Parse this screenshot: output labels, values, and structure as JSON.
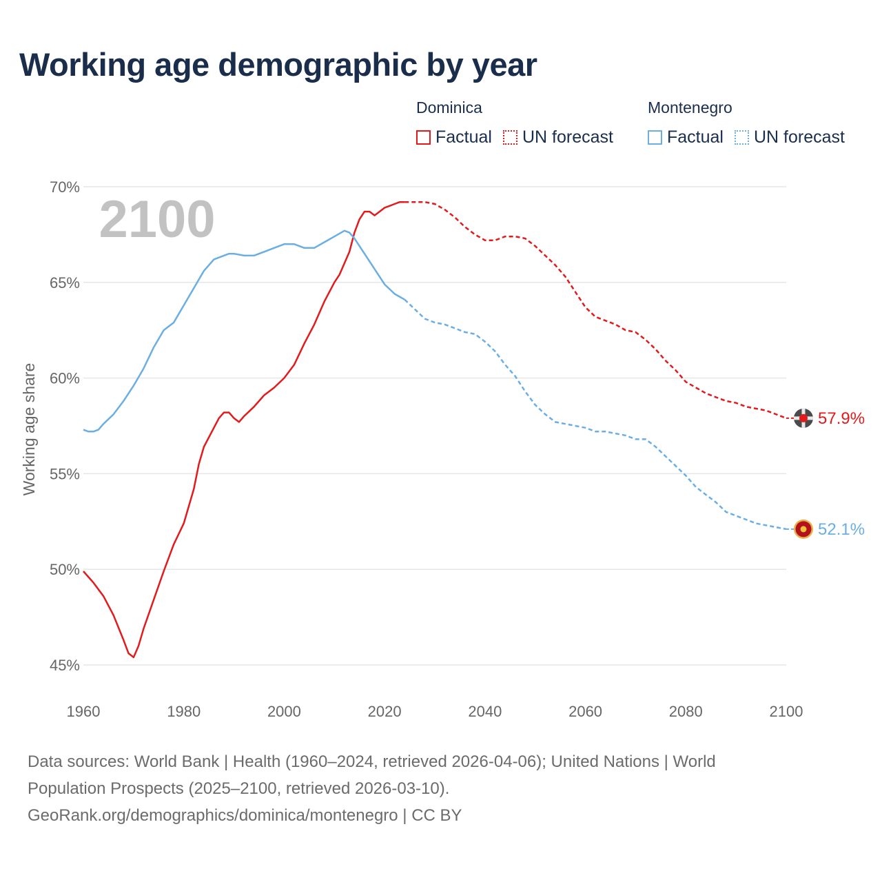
{
  "title": "Working age demographic by year",
  "legend": {
    "groups": [
      {
        "name": "Dominica",
        "color": "#e31a1c",
        "factual_label": "Factual",
        "forecast_label": "UN forecast"
      },
      {
        "name": "Montenegro",
        "color": "#6aaee3",
        "factual_label": "Factual",
        "forecast_label": "UN forecast"
      }
    ]
  },
  "source": {
    "line1": "Data sources: World Bank | Health (1960–2024, retrieved 2026-04-06); United Nations | World",
    "line2": "Population Prospects (2025–2100, retrieved 2026-03-10).",
    "line3": "GeoRank.org/demographics/dominica/montenegro | CC BY"
  },
  "chart_data": {
    "type": "line",
    "title": "Working age demographic by year",
    "ylabel": "Working age share",
    "xlabel": "",
    "xlim": [
      1960,
      2100
    ],
    "ylim": [
      45,
      70
    ],
    "x_ticks": [
      1960,
      1980,
      2000,
      2020,
      2040,
      2060,
      2080,
      2100
    ],
    "x_tick_labels": [
      "1960",
      "1980",
      "2000",
      "2020",
      "2040",
      "2060",
      "2080",
      "2100"
    ],
    "y_ticks": [
      45,
      50,
      55,
      60,
      65,
      70
    ],
    "y_tick_labels": [
      "45%",
      "50%",
      "55%",
      "60%",
      "65%",
      "70%"
    ],
    "current_year_label": "2100",
    "forecast_start": 2024,
    "series": [
      {
        "name": "Dominica",
        "color": "#e31a1c",
        "end_label": "57.9%",
        "points": [
          [
            1960,
            49.9
          ],
          [
            1962,
            49.3
          ],
          [
            1964,
            48.6
          ],
          [
            1966,
            47.6
          ],
          [
            1968,
            46.3
          ],
          [
            1969,
            45.6
          ],
          [
            1970,
            45.4
          ],
          [
            1971,
            46.0
          ],
          [
            1972,
            46.9
          ],
          [
            1974,
            48.4
          ],
          [
            1976,
            49.9
          ],
          [
            1978,
            51.3
          ],
          [
            1980,
            52.4
          ],
          [
            1982,
            54.2
          ],
          [
            1983,
            55.5
          ],
          [
            1984,
            56.4
          ],
          [
            1986,
            57.4
          ],
          [
            1987,
            57.9
          ],
          [
            1988,
            58.2
          ],
          [
            1989,
            58.2
          ],
          [
            1990,
            57.9
          ],
          [
            1991,
            57.7
          ],
          [
            1992,
            58.0
          ],
          [
            1994,
            58.5
          ],
          [
            1996,
            59.1
          ],
          [
            1998,
            59.5
          ],
          [
            2000,
            60.0
          ],
          [
            2002,
            60.7
          ],
          [
            2004,
            61.8
          ],
          [
            2006,
            62.8
          ],
          [
            2008,
            64.0
          ],
          [
            2010,
            65.0
          ],
          [
            2011,
            65.4
          ],
          [
            2013,
            66.6
          ],
          [
            2014,
            67.6
          ],
          [
            2015,
            68.3
          ],
          [
            2016,
            68.7
          ],
          [
            2017,
            68.7
          ],
          [
            2018,
            68.5
          ],
          [
            2019,
            68.7
          ],
          [
            2020,
            68.9
          ],
          [
            2021,
            69.0
          ],
          [
            2022,
            69.1
          ],
          [
            2023,
            69.2
          ],
          [
            2024,
            69.2
          ],
          [
            2026,
            69.2
          ],
          [
            2028,
            69.2
          ],
          [
            2030,
            69.1
          ],
          [
            2032,
            68.8
          ],
          [
            2034,
            68.4
          ],
          [
            2036,
            67.9
          ],
          [
            2038,
            67.5
          ],
          [
            2040,
            67.2
          ],
          [
            2042,
            67.2
          ],
          [
            2044,
            67.4
          ],
          [
            2046,
            67.4
          ],
          [
            2048,
            67.3
          ],
          [
            2050,
            66.9
          ],
          [
            2052,
            66.4
          ],
          [
            2054,
            65.9
          ],
          [
            2056,
            65.3
          ],
          [
            2058,
            64.5
          ],
          [
            2060,
            63.7
          ],
          [
            2062,
            63.2
          ],
          [
            2064,
            63.0
          ],
          [
            2066,
            62.8
          ],
          [
            2068,
            62.5
          ],
          [
            2070,
            62.4
          ],
          [
            2072,
            62.0
          ],
          [
            2074,
            61.5
          ],
          [
            2076,
            60.9
          ],
          [
            2078,
            60.4
          ],
          [
            2080,
            59.8
          ],
          [
            2082,
            59.5
          ],
          [
            2084,
            59.2
          ],
          [
            2086,
            59.0
          ],
          [
            2088,
            58.8
          ],
          [
            2090,
            58.7
          ],
          [
            2092,
            58.5
          ],
          [
            2094,
            58.4
          ],
          [
            2096,
            58.3
          ],
          [
            2098,
            58.1
          ],
          [
            2100,
            57.9
          ]
        ]
      },
      {
        "name": "Montenegro",
        "color": "#6aaee3",
        "end_label": "52.1%",
        "points": [
          [
            1960,
            57.3
          ],
          [
            1961,
            57.2
          ],
          [
            1962,
            57.2
          ],
          [
            1963,
            57.3
          ],
          [
            1964,
            57.6
          ],
          [
            1966,
            58.1
          ],
          [
            1968,
            58.8
          ],
          [
            1970,
            59.6
          ],
          [
            1972,
            60.5
          ],
          [
            1974,
            61.6
          ],
          [
            1976,
            62.5
          ],
          [
            1978,
            62.9
          ],
          [
            1980,
            63.8
          ],
          [
            1982,
            64.7
          ],
          [
            1984,
            65.6
          ],
          [
            1986,
            66.2
          ],
          [
            1988,
            66.4
          ],
          [
            1989,
            66.5
          ],
          [
            1990,
            66.5
          ],
          [
            1992,
            66.4
          ],
          [
            1994,
            66.4
          ],
          [
            1996,
            66.6
          ],
          [
            1998,
            66.8
          ],
          [
            2000,
            67.0
          ],
          [
            2002,
            67.0
          ],
          [
            2004,
            66.8
          ],
          [
            2006,
            66.8
          ],
          [
            2008,
            67.1
          ],
          [
            2010,
            67.4
          ],
          [
            2012,
            67.7
          ],
          [
            2013,
            67.6
          ],
          [
            2014,
            67.3
          ],
          [
            2016,
            66.5
          ],
          [
            2018,
            65.7
          ],
          [
            2020,
            64.9
          ],
          [
            2022,
            64.4
          ],
          [
            2024,
            64.1
          ],
          [
            2026,
            63.6
          ],
          [
            2028,
            63.1
          ],
          [
            2030,
            62.9
          ],
          [
            2032,
            62.8
          ],
          [
            2034,
            62.6
          ],
          [
            2036,
            62.4
          ],
          [
            2038,
            62.3
          ],
          [
            2040,
            61.9
          ],
          [
            2042,
            61.4
          ],
          [
            2044,
            60.7
          ],
          [
            2046,
            60.1
          ],
          [
            2048,
            59.3
          ],
          [
            2050,
            58.6
          ],
          [
            2052,
            58.1
          ],
          [
            2054,
            57.7
          ],
          [
            2056,
            57.6
          ],
          [
            2058,
            57.5
          ],
          [
            2060,
            57.4
          ],
          [
            2062,
            57.2
          ],
          [
            2064,
            57.2
          ],
          [
            2066,
            57.1
          ],
          [
            2068,
            57.0
          ],
          [
            2070,
            56.8
          ],
          [
            2072,
            56.8
          ],
          [
            2074,
            56.4
          ],
          [
            2076,
            55.9
          ],
          [
            2078,
            55.4
          ],
          [
            2080,
            54.9
          ],
          [
            2082,
            54.3
          ],
          [
            2084,
            53.9
          ],
          [
            2086,
            53.5
          ],
          [
            2088,
            53.0
          ],
          [
            2090,
            52.8
          ],
          [
            2092,
            52.6
          ],
          [
            2094,
            52.4
          ],
          [
            2096,
            52.3
          ],
          [
            2098,
            52.2
          ],
          [
            2100,
            52.1
          ]
        ]
      }
    ]
  }
}
